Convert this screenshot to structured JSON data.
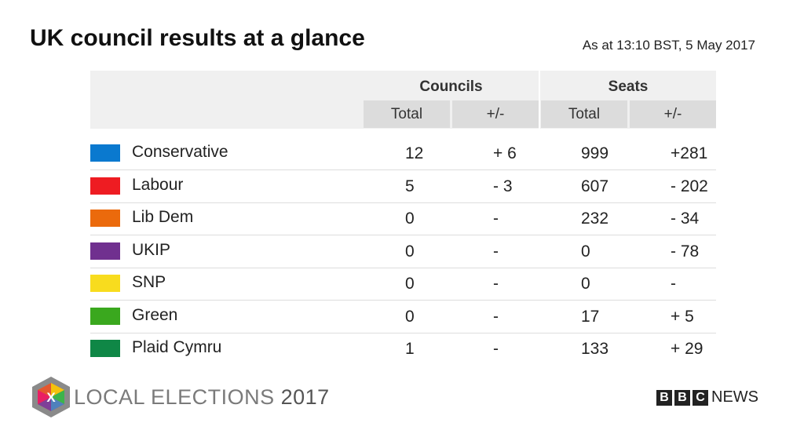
{
  "header": {
    "title": "UK council results at a glance",
    "timestamp": "As at 13:10 BST, 5 May 2017"
  },
  "table": {
    "groups": [
      "Councils",
      "Seats"
    ],
    "subheaders": [
      "Total",
      "+/-",
      "Total",
      "+/-"
    ],
    "rows": [
      {
        "party": "Conservative",
        "color": "#0a79cf",
        "cells": [
          "12",
          "+ 6",
          "999",
          "+281"
        ]
      },
      {
        "party": "Labour",
        "color": "#ee1c22",
        "cells": [
          "5",
          "- 3",
          "607",
          "- 202"
        ]
      },
      {
        "party": "Lib Dem",
        "color": "#eb6a0c",
        "cells": [
          "0",
          "-",
          "232",
          "- 34"
        ]
      },
      {
        "party": "UKIP",
        "color": "#70308f",
        "cells": [
          "0",
          "-",
          "0",
          "- 78"
        ]
      },
      {
        "party": "SNP",
        "color": "#f8dc1e",
        "cells": [
          "0",
          "-",
          "0",
          "-"
        ]
      },
      {
        "party": "Green",
        "color": "#3aa81e",
        "cells": [
          "0",
          "-",
          "17",
          "+ 5"
        ]
      },
      {
        "party": "Plaid Cymru",
        "color": "#0f8746",
        "cells": [
          "1",
          "-",
          "133",
          "+ 29"
        ]
      }
    ]
  },
  "footer": {
    "logo_mark": "X",
    "brand": "LOCAL ELECTIONS",
    "year": "2017",
    "bbc_letters": [
      "B",
      "B",
      "C"
    ],
    "news": "NEWS"
  }
}
